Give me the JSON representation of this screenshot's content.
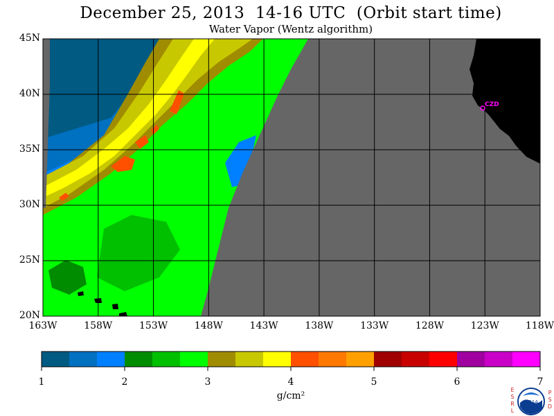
{
  "title": "December 25, 2013  14-16 UTC  (Orbit start time)",
  "subtitle": "Water Vapor (Wentz algorithm)",
  "map": {
    "lat_labels": [
      "45N",
      "40N",
      "35N",
      "30N",
      "25N",
      "20N"
    ],
    "lon_labels": [
      "163W",
      "158W",
      "153W",
      "148W",
      "143W",
      "138W",
      "133W",
      "128W",
      "123W",
      "118W"
    ],
    "city_label": "CZD",
    "colors": {
      "land": "#000000",
      "no_data": "#666666",
      "city_marker": "#ff00ff",
      "grid": "#000000"
    }
  },
  "colorbar": {
    "ticks": [
      "1",
      "2",
      "3",
      "4",
      "5",
      "6",
      "7"
    ],
    "unit": "g/cm²",
    "colors": [
      "#005a82",
      "#0070c0",
      "#0080ff",
      "#008c00",
      "#00c000",
      "#00ff00",
      "#a08c00",
      "#c8c800",
      "#ffff00",
      "#ff5000",
      "#ff7800",
      "#ffa000",
      "#a00000",
      "#c80000",
      "#ff0000",
      "#a000a0",
      "#c800c8",
      "#ff00ff"
    ]
  },
  "logo": {
    "left_letters": [
      "E",
      "S",
      "R",
      "L"
    ],
    "right_letters": [
      "P",
      "S",
      "D"
    ],
    "center": "NOAA"
  }
}
